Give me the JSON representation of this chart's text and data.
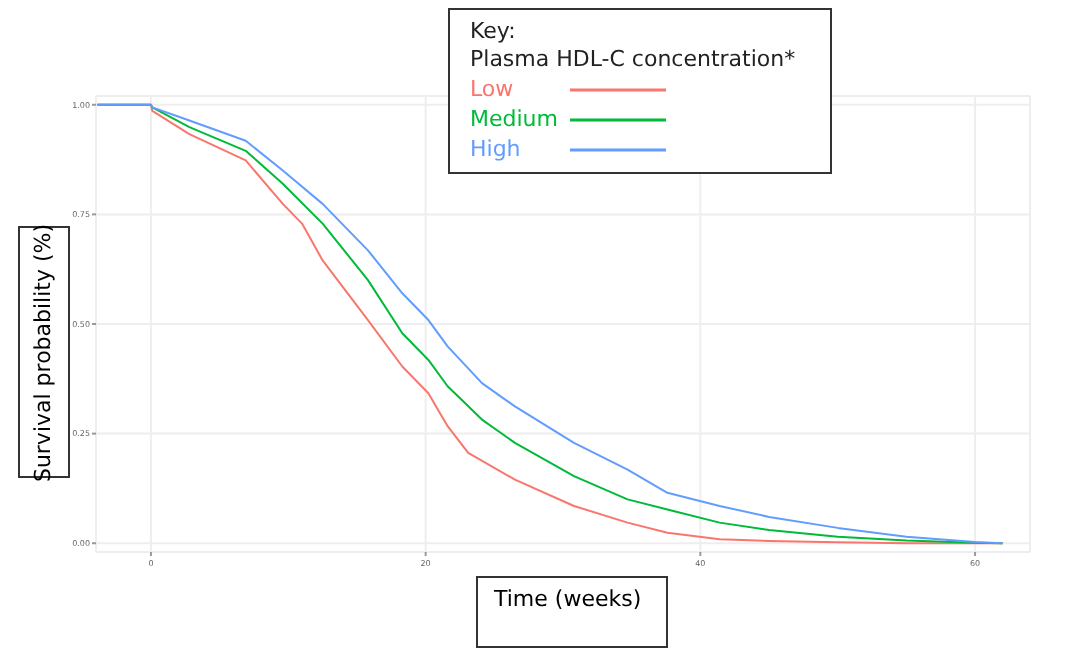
{
  "chart_data": {
    "type": "line",
    "xlabel": "Time (weeks)",
    "ylabel": "Survival probability (%)",
    "legend_title": "Key:\nPlasma HDL-C concentration*",
    "xlim": [
      -4,
      64
    ],
    "ylim": [
      -0.02,
      1.02
    ],
    "xticks": [
      0,
      20,
      40,
      60
    ],
    "yticks": [
      {
        "value": 0,
        "label": "0.00"
      },
      {
        "value": 0.25,
        "label": "0.25"
      },
      {
        "value": 0.5,
        "label": "0.50"
      },
      {
        "value": 0.75,
        "label": "0.75"
      },
      {
        "value": 1,
        "label": "1.00"
      }
    ],
    "grid": true,
    "legend": "top",
    "line_style": "solid",
    "marker": "none",
    "series": [
      {
        "name": "Low",
        "color": "#f8766d",
        "x": [
          -3.9,
          0,
          0.1,
          2.8,
          6.9,
          9.6,
          11,
          12.5,
          15.8,
          18.3,
          20.2,
          21.6,
          23.1,
          26.5,
          30.8,
          34.7,
          37.6,
          41.4,
          45,
          50,
          55,
          62
        ],
        "values": [
          1,
          1,
          0.986,
          0.933,
          0.873,
          0.774,
          0.729,
          0.645,
          0.509,
          0.403,
          0.342,
          0.267,
          0.206,
          0.145,
          0.085,
          0.047,
          0.024,
          0.009,
          0.005,
          0.002,
          0,
          0
        ]
      },
      {
        "name": "Medium",
        "color": "#00ba38",
        "x": [
          -3.9,
          0,
          0.1,
          2.8,
          6.9,
          9.6,
          12.5,
          15.8,
          18.3,
          20.2,
          21.6,
          24.1,
          26.5,
          30.8,
          34.7,
          37.6,
          41.4,
          45,
          50,
          55,
          60,
          62
        ],
        "values": [
          1,
          1,
          0.994,
          0.949,
          0.895,
          0.82,
          0.729,
          0.6,
          0.479,
          0.418,
          0.358,
          0.282,
          0.229,
          0.153,
          0.1,
          0.077,
          0.047,
          0.03,
          0.015,
          0.006,
          0.001,
          0
        ]
      },
      {
        "name": "High",
        "color": "#619cff",
        "x": [
          -3.9,
          0,
          0.1,
          2.8,
          6.9,
          9.6,
          12.5,
          15.8,
          18.3,
          20.2,
          21.6,
          24.1,
          26.5,
          30.8,
          34.7,
          37.6,
          41.4,
          45,
          50,
          55,
          60,
          62
        ],
        "values": [
          1,
          1,
          0.994,
          0.964,
          0.918,
          0.85,
          0.774,
          0.668,
          0.57,
          0.509,
          0.449,
          0.365,
          0.312,
          0.229,
          0.168,
          0.115,
          0.085,
          0.06,
          0.035,
          0.015,
          0.003,
          0
        ]
      }
    ]
  }
}
